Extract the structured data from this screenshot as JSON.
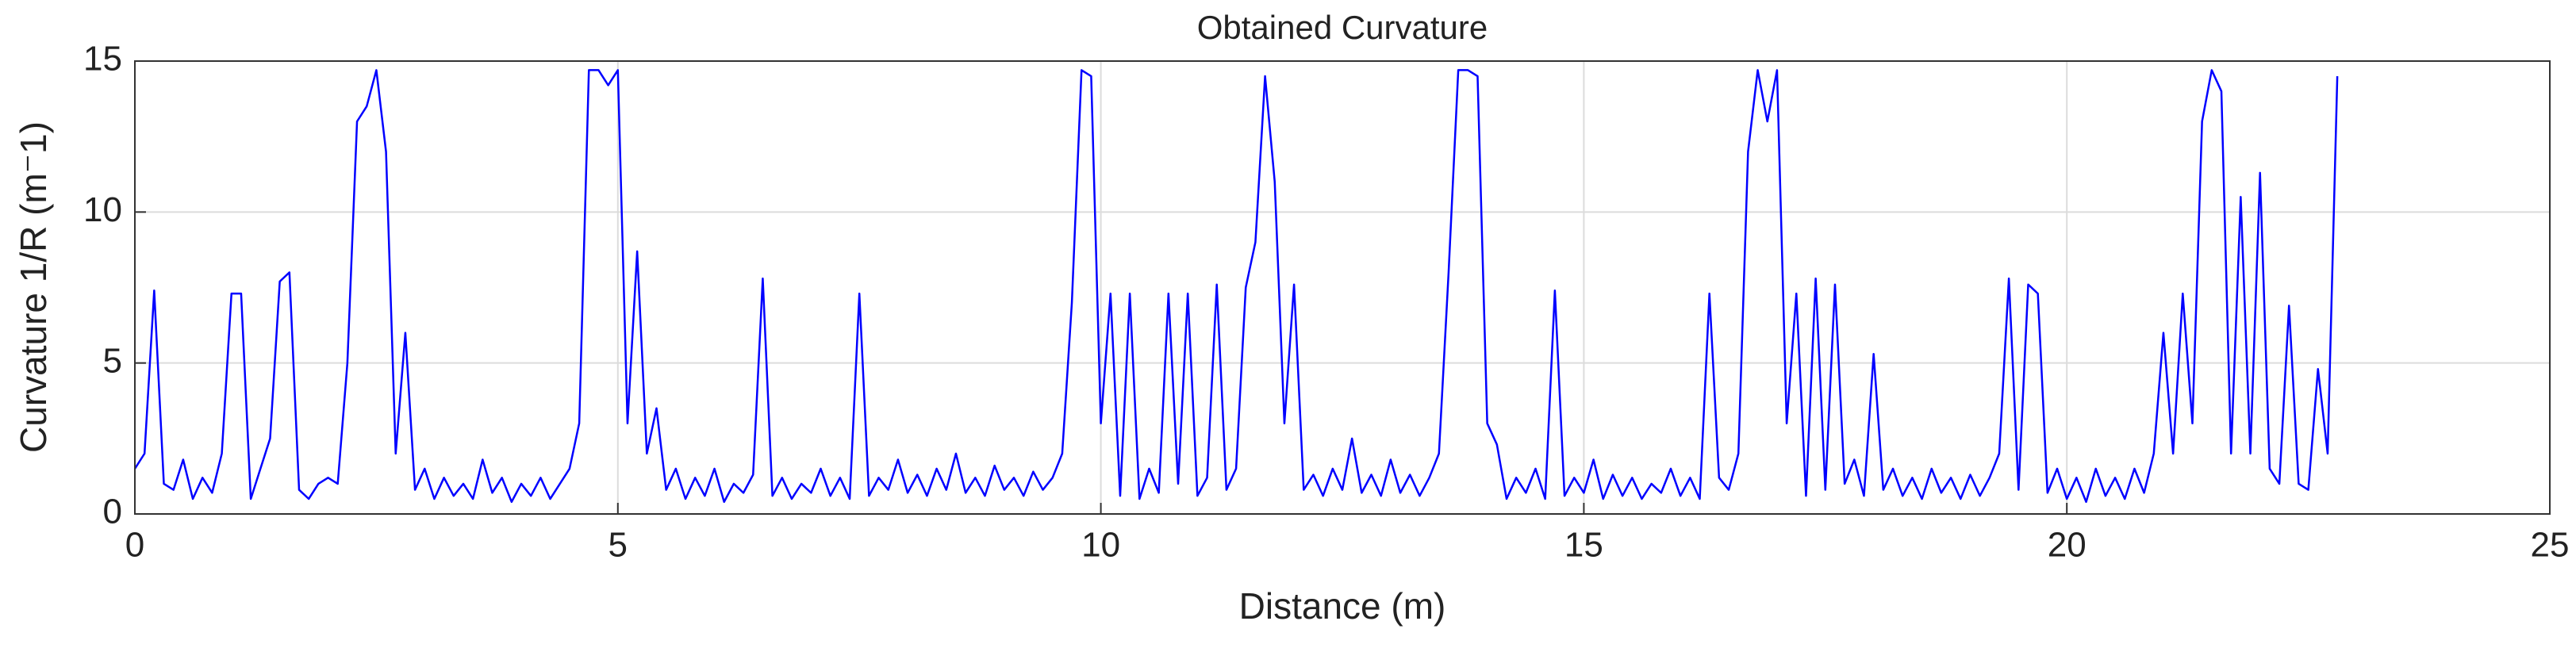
{
  "chart_data": {
    "type": "line",
    "title": "Obtained Curvature",
    "x_label": "Distance (m)",
    "y_label": "Curvature 1/R (m⁻1)",
    "xlim": [
      0,
      25
    ],
    "ylim": [
      0,
      15
    ],
    "xticks": [
      0,
      5,
      10,
      15,
      20,
      25
    ],
    "yticks": [
      0,
      5,
      10,
      15
    ],
    "grid": true,
    "series": [
      {
        "color": "#0000ff",
        "x": [
          0,
          0.1,
          0.2,
          0.3,
          0.4,
          0.5,
          0.6,
          0.7,
          0.8,
          0.9,
          1,
          1.1,
          1.2,
          1.3,
          1.4,
          1.5,
          1.6,
          1.7,
          1.8,
          1.9,
          2,
          2.1,
          2.2,
          2.3,
          2.4,
          2.5,
          2.6,
          2.7,
          2.8,
          2.9,
          3,
          3.1,
          3.2,
          3.3,
          3.4,
          3.5,
          3.6,
          3.7,
          3.8,
          3.9,
          4,
          4.1,
          4.2,
          4.3,
          4.4,
          4.5,
          4.6,
          4.7,
          4.8,
          4.9,
          5,
          5.1,
          5.2,
          5.3,
          5.4,
          5.5,
          5.6,
          5.7,
          5.8,
          5.9,
          6,
          6.1,
          6.2,
          6.3,
          6.4,
          6.5,
          6.6,
          6.7,
          6.8,
          6.9,
          7,
          7.1,
          7.2,
          7.3,
          7.4,
          7.5,
          7.6,
          7.7,
          7.8,
          7.9,
          8,
          8.1,
          8.2,
          8.3,
          8.4,
          8.5,
          8.6,
          8.7,
          8.8,
          8.9,
          9,
          9.1,
          9.2,
          9.3,
          9.4,
          9.5,
          9.6,
          9.7,
          9.8,
          9.9,
          10,
          10.1,
          10.2,
          10.3,
          10.4,
          10.5,
          10.6,
          10.7,
          10.8,
          10.9,
          11,
          11.1,
          11.2,
          11.3,
          11.4,
          11.5,
          11.6,
          11.7,
          11.8,
          11.9,
          12,
          12.1,
          12.2,
          12.3,
          12.4,
          12.5,
          12.6,
          12.7,
          12.8,
          12.9,
          13,
          13.1,
          13.2,
          13.3,
          13.4,
          13.5,
          13.6,
          13.7,
          13.8,
          13.9,
          14,
          14.1,
          14.2,
          14.3,
          14.4,
          14.5,
          14.6,
          14.7,
          14.8,
          14.9,
          15,
          15.1,
          15.2,
          15.3,
          15.4,
          15.5,
          15.6,
          15.7,
          15.8,
          15.9,
          16,
          16.1,
          16.2,
          16.3,
          16.4,
          16.5,
          16.6,
          16.7,
          16.8,
          16.9,
          17,
          17.1,
          17.2,
          17.3,
          17.4,
          17.5,
          17.6,
          17.7,
          17.8,
          17.9,
          18,
          18.1,
          18.2,
          18.3,
          18.4,
          18.5,
          18.6,
          18.7,
          18.8,
          18.9,
          19,
          19.1,
          19.2,
          19.3,
          19.4,
          19.5,
          19.6,
          19.7,
          19.8,
          19.9,
          20,
          20.1,
          20.2,
          20.3,
          20.4,
          20.5,
          20.6,
          20.7,
          20.8,
          20.9,
          21,
          21.1,
          21.2,
          21.3,
          21.4,
          21.5,
          21.6,
          21.7,
          21.8,
          21.9,
          22,
          22.1,
          22.2,
          22.3,
          22.4,
          22.5,
          22.6,
          22.7,
          22.8
        ],
        "values": [
          1.5,
          2,
          7.4,
          1,
          0.8,
          1.8,
          0.5,
          1.2,
          0.7,
          2,
          7.3,
          7.3,
          0.5,
          1.5,
          2.5,
          7.7,
          8,
          0.8,
          0.5,
          1,
          1.2,
          1,
          5,
          13,
          13.5,
          14.7,
          12,
          2,
          6,
          0.8,
          1.5,
          0.5,
          1.2,
          0.6,
          1,
          0.5,
          1.8,
          0.7,
          1.2,
          0.4,
          1,
          0.6,
          1.2,
          0.5,
          1,
          1.5,
          3,
          14.7,
          14.7,
          14.2,
          14.7,
          3,
          8.7,
          2,
          3.5,
          0.8,
          1.5,
          0.5,
          1.2,
          0.6,
          1.5,
          0.4,
          1,
          0.7,
          1.3,
          7.8,
          0.6,
          1.2,
          0.5,
          1,
          0.7,
          1.5,
          0.6,
          1.2,
          0.5,
          7.3,
          0.6,
          1.2,
          0.8,
          1.8,
          0.7,
          1.3,
          0.6,
          1.5,
          0.8,
          2,
          0.7,
          1.2,
          0.6,
          1.6,
          0.8,
          1.2,
          0.6,
          1.4,
          0.8,
          1.2,
          2,
          7,
          14.7,
          14.5,
          3,
          7.3,
          0.6,
          7.3,
          0.5,
          1.5,
          0.7,
          7.3,
          1,
          7.3,
          0.6,
          1.2,
          7.6,
          0.8,
          1.5,
          7.5,
          9,
          14.5,
          11,
          3,
          7.6,
          0.8,
          1.3,
          0.6,
          1.5,
          0.8,
          2.5,
          0.7,
          1.3,
          0.6,
          1.8,
          0.7,
          1.3,
          0.6,
          1.2,
          2,
          8,
          14.7,
          14.7,
          14.5,
          3,
          2.3,
          0.5,
          1.2,
          0.7,
          1.5,
          0.5,
          7.4,
          0.6,
          1.2,
          0.7,
          1.8,
          0.5,
          1.3,
          0.6,
          1.2,
          0.5,
          1,
          0.7,
          1.5,
          0.6,
          1.2,
          0.5,
          7.3,
          1.2,
          0.8,
          2,
          12,
          14.7,
          13,
          14.7,
          3,
          7.3,
          0.6,
          7.8,
          0.8,
          7.6,
          1,
          1.8,
          0.6,
          5.3,
          0.8,
          1.5,
          0.6,
          1.2,
          0.5,
          1.5,
          0.7,
          1.2,
          0.5,
          1.3,
          0.6,
          1.2,
          2,
          7.8,
          0.8,
          7.6,
          7.3,
          0.7,
          1.5,
          0.5,
          1.2,
          0.4,
          1.5,
          0.6,
          1.2,
          0.5,
          1.5,
          0.7,
          2,
          6,
          2,
          7.3,
          3,
          13,
          14.7,
          14,
          2,
          10.5,
          2,
          11.3,
          1.5,
          1,
          6.9,
          1,
          0.8,
          4.8,
          2,
          14.5
        ]
      }
    ]
  }
}
